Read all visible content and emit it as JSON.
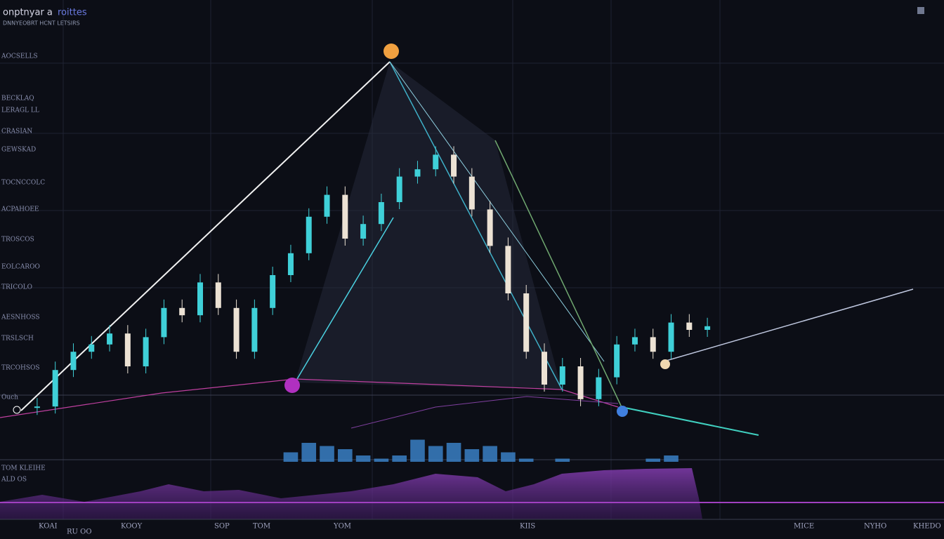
{
  "header": {
    "title": "onptnyar a",
    "accent": "roittes",
    "subtitle": "DNNYEOBRT HCNT LETSIRS"
  },
  "side_labels": [
    "AOCSELLS",
    "BECKLAQ",
    "LERAGL LL",
    "CRASIAN",
    "GEWSKAD",
    "TOCNCCOLC",
    "ACPAHOEE",
    "TROSCOS",
    "EOLCAROO",
    "TRICOLO",
    "AESNHOSS",
    "TRSLSCH",
    "TRCOHSOS",
    "Ouch"
  ],
  "panel_labels": [
    "TOM KLEIHE",
    "ALD OS"
  ],
  "bottom_labels": [
    "KOAI",
    "RU OO",
    "KOOY",
    "SOP",
    "TOM",
    "YOM",
    "KIIS",
    "MICE",
    "NYHO",
    "KHEDO"
  ],
  "chart_data": [
    {
      "type": "candlestick",
      "ylim": [
        0,
        100
      ],
      "up_color": "#3fd0d8",
      "down_color": "#ece2d4",
      "close": [
        4,
        14,
        19,
        21,
        24,
        15,
        23,
        31,
        29,
        38,
        31,
        19,
        31,
        40,
        46,
        56,
        62,
        50,
        54,
        60,
        67,
        69,
        73,
        67,
        58,
        48,
        35,
        19,
        10,
        15,
        6,
        12,
        21,
        23,
        19,
        27,
        25,
        26
      ]
    },
    {
      "type": "bar",
      "ylim": [
        0,
        10
      ],
      "color": "#3a7fc4",
      "values": [
        0,
        0,
        0,
        0,
        0,
        0,
        0,
        0,
        0,
        0,
        0,
        0,
        0,
        0,
        3,
        6,
        5,
        4,
        2,
        1,
        2,
        7,
        5,
        6,
        4,
        5,
        3,
        1,
        0,
        1,
        0,
        0,
        0,
        0,
        1,
        2,
        0,
        0
      ]
    }
  ]
}
